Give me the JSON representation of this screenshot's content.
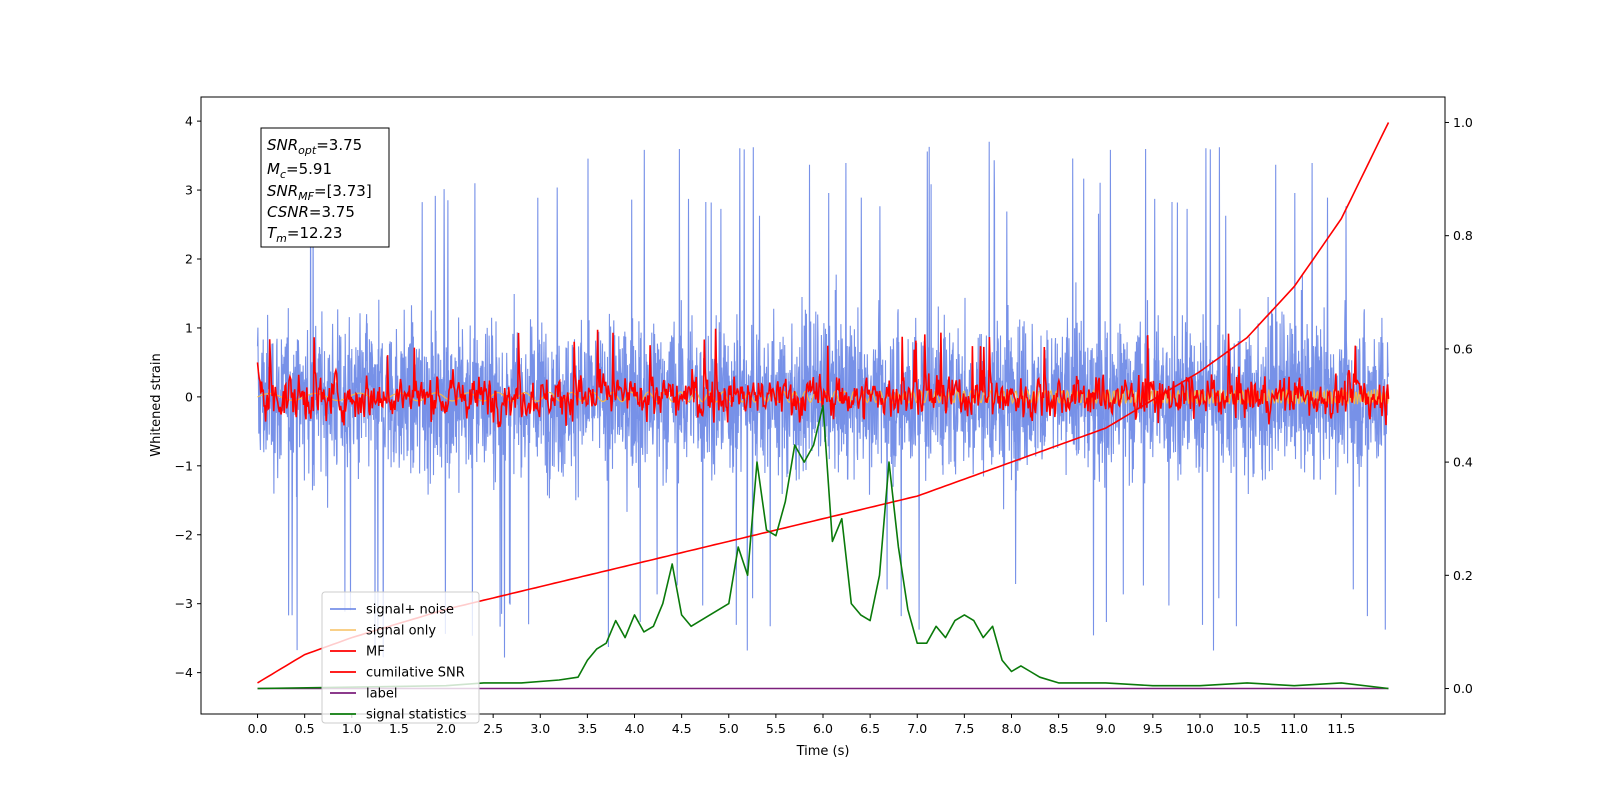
{
  "chart_data": {
    "type": "line",
    "xlabel": "Time (s)",
    "ylabel": "Whitened strain",
    "x_ticks": [
      "0.0",
      "0.5",
      "1.0",
      "1.5",
      "2.0",
      "2.5",
      "3.0",
      "3.5",
      "4.0",
      "4.5",
      "5.0",
      "5.5",
      "6.0",
      "6.5",
      "7.0",
      "7.5",
      "8.0",
      "8.5",
      "9.0",
      "9.5",
      "10.0",
      "10.5",
      "11.0",
      "11.5"
    ],
    "y_ticks": [
      "4",
      "3",
      "2",
      "1",
      "0",
      "−1",
      "−2",
      "−3",
      "−4"
    ],
    "y2_ticks": [
      "1.0",
      "0.8",
      "0.6",
      "0.4",
      "0.2",
      "0.0"
    ],
    "xlim": [
      -0.6,
      12.6
    ],
    "ylim": [
      -4.6,
      4.35
    ],
    "y2lim": [
      -0.045,
      1.045
    ],
    "grid": false,
    "legend_position": "lower-left",
    "annotation": {
      "snr_opt": {
        "sym": "SNR",
        "sub": "opt",
        "value": "=3.75"
      },
      "mc": {
        "sym": "M",
        "sub": "c",
        "value": "=5.91"
      },
      "snr_mf": {
        "sym": "SNR",
        "sub": "MF",
        "value": "=[3.73]"
      },
      "csnr": {
        "sym": "CSNR",
        "sub": "",
        "value": "=3.75"
      },
      "tm": {
        "sym": "T",
        "sub": "m",
        "value": "=12.23"
      }
    },
    "series": [
      {
        "name": "signal+ noise",
        "color": "#6b88e6",
        "axis": "left",
        "approx": "whitened noise, amplitude about ±2.5, spikes to about ±4, from 0.0 to 12.0 s"
      },
      {
        "name": "signal only",
        "color": "#f5b84a",
        "axis": "left",
        "approx": "small chirp near 0, amplitude below 0.3"
      },
      {
        "name": "MF",
        "color": "#ff0000",
        "axis": "left",
        "approx": "noise around 0, amplitude about ±0.5, peaks near 1.0"
      },
      {
        "name": "cumilative SNR",
        "color": "#ff0000",
        "axis": "right",
        "x": [
          0.0,
          0.5,
          1.0,
          2.0,
          3.0,
          4.0,
          5.0,
          6.0,
          7.0,
          8.0,
          9.0,
          10.0,
          10.5,
          11.0,
          11.5,
          12.0
        ],
        "y": [
          0.01,
          0.06,
          0.09,
          0.14,
          0.18,
          0.22,
          0.26,
          0.3,
          0.34,
          0.4,
          0.46,
          0.56,
          0.62,
          0.71,
          0.83,
          1.0
        ]
      },
      {
        "name": "label",
        "color": "#7b1f7b",
        "axis": "right",
        "x": [
          0.0,
          12.0
        ],
        "y": [
          0.0,
          0.0
        ]
      },
      {
        "name": "signal statistics",
        "color": "#0a7a0a",
        "axis": "right",
        "x": [
          0.0,
          2.0,
          2.4,
          2.8,
          3.2,
          3.4,
          3.5,
          3.6,
          3.7,
          3.8,
          3.9,
          4.0,
          4.1,
          4.2,
          4.3,
          4.4,
          4.5,
          4.6,
          4.8,
          5.0,
          5.1,
          5.2,
          5.3,
          5.4,
          5.5,
          5.6,
          5.7,
          5.8,
          5.9,
          6.0,
          6.1,
          6.2,
          6.3,
          6.4,
          6.5,
          6.6,
          6.7,
          6.8,
          6.9,
          7.0,
          7.1,
          7.2,
          7.3,
          7.4,
          7.5,
          7.6,
          7.7,
          7.8,
          7.9,
          8.0,
          8.1,
          8.2,
          8.3,
          8.5,
          9.0,
          9.5,
          10.0,
          10.5,
          11.0,
          11.5,
          12.0
        ],
        "y": [
          0.0,
          0.005,
          0.01,
          0.01,
          0.015,
          0.02,
          0.05,
          0.07,
          0.08,
          0.12,
          0.09,
          0.13,
          0.1,
          0.11,
          0.15,
          0.22,
          0.13,
          0.11,
          0.13,
          0.15,
          0.25,
          0.2,
          0.4,
          0.28,
          0.27,
          0.33,
          0.43,
          0.4,
          0.43,
          0.5,
          0.26,
          0.3,
          0.15,
          0.13,
          0.12,
          0.2,
          0.4,
          0.25,
          0.14,
          0.08,
          0.08,
          0.11,
          0.09,
          0.12,
          0.13,
          0.12,
          0.09,
          0.11,
          0.05,
          0.03,
          0.04,
          0.03,
          0.02,
          0.01,
          0.01,
          0.005,
          0.005,
          0.01,
          0.005,
          0.01,
          0.0
        ]
      }
    ]
  }
}
